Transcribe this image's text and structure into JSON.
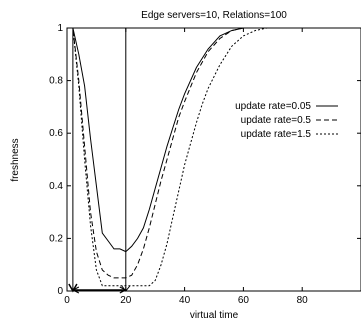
{
  "chart_data": {
    "type": "line",
    "title": "Edge servers=10, Relations=100",
    "xlabel": "virtual time",
    "ylabel": "freshness",
    "xlim": [
      0,
      100
    ],
    "ylim": [
      0,
      1
    ],
    "xticks": [
      "0",
      "20",
      "40",
      "60",
      "80"
    ],
    "yticks": [
      "0",
      "0.2",
      "0.4",
      "0.6",
      "0.8",
      "1"
    ],
    "grid": false,
    "legend_position": "right",
    "series": [
      {
        "name": "update rate=0.05",
        "style": "solid",
        "x": [
          0,
          2,
          4,
          6,
          8,
          10,
          12,
          14,
          16,
          18,
          20,
          22,
          24,
          26,
          28,
          30,
          32,
          34,
          36,
          38,
          40,
          44,
          48,
          52,
          56,
          60,
          64,
          68,
          72,
          80,
          100
        ],
        "y": [
          1,
          1,
          0.9,
          0.78,
          0.58,
          0.4,
          0.22,
          0.19,
          0.16,
          0.16,
          0.15,
          0.17,
          0.2,
          0.24,
          0.31,
          0.39,
          0.47,
          0.55,
          0.62,
          0.69,
          0.75,
          0.85,
          0.92,
          0.97,
          0.99,
          1,
          1,
          1,
          1,
          1,
          1
        ]
      },
      {
        "name": "update rate=0.5",
        "style": "dashed",
        "x": [
          0,
          2,
          4,
          6,
          8,
          10,
          12,
          14,
          16,
          18,
          20,
          22,
          24,
          26,
          28,
          30,
          32,
          34,
          36,
          38,
          40,
          44,
          48,
          52,
          56,
          60,
          64,
          68,
          72,
          80,
          100
        ],
        "y": [
          1,
          1,
          0.8,
          0.55,
          0.3,
          0.15,
          0.08,
          0.06,
          0.05,
          0.05,
          0.05,
          0.06,
          0.1,
          0.16,
          0.24,
          0.33,
          0.42,
          0.5,
          0.58,
          0.66,
          0.72,
          0.83,
          0.91,
          0.96,
          0.99,
          1,
          1,
          1,
          1,
          1,
          1
        ]
      },
      {
        "name": "update rate=1.5",
        "style": "dotted",
        "x": [
          0,
          2,
          4,
          6,
          8,
          10,
          12,
          14,
          16,
          20,
          24,
          28,
          30,
          32,
          34,
          36,
          38,
          40,
          42,
          44,
          46,
          48,
          52,
          56,
          60,
          64,
          68,
          72,
          80,
          100
        ],
        "y": [
          1,
          1,
          0.78,
          0.5,
          0.25,
          0.08,
          0.02,
          0.02,
          0.02,
          0.02,
          0.02,
          0.02,
          0.04,
          0.1,
          0.18,
          0.28,
          0.38,
          0.48,
          0.56,
          0.64,
          0.71,
          0.77,
          0.86,
          0.93,
          0.97,
          0.99,
          1,
          1,
          1,
          1
        ]
      }
    ],
    "vlines": [
      2,
      20
    ]
  }
}
